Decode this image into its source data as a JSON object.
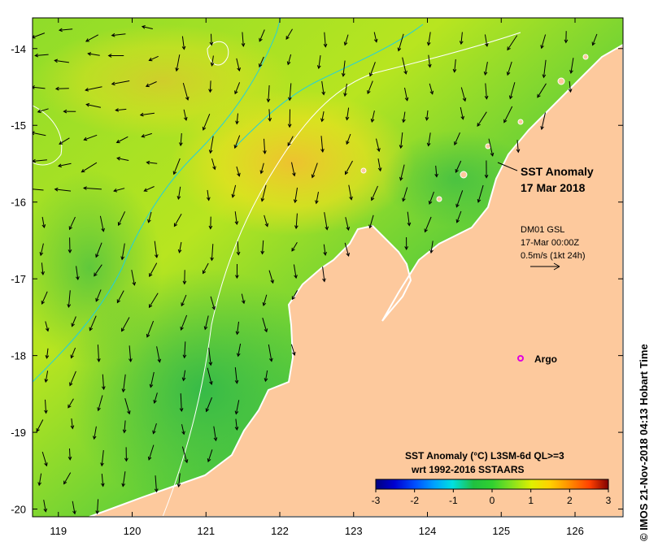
{
  "map": {
    "title_line1": "SST Anomaly",
    "title_line2": "17 Mar 2018",
    "current_info": {
      "line1": "DM01 GSL",
      "line2": "17-Mar 00:00Z",
      "line3": "0.5m/s (1kt 24h)"
    },
    "argo_label": "Argo",
    "argo_marker_color": "#e000e0",
    "land_color": "#fdc99d",
    "copyright": "© IMOS 21-Nov-2018 04:13 Hobart Time"
  },
  "axes": {
    "lon_labels": [
      "119",
      "120",
      "121",
      "122",
      "123",
      "124",
      "125",
      "126"
    ],
    "lat_labels": [
      "-14",
      "-15",
      "-16",
      "-17",
      "-18",
      "-19",
      "-20"
    ],
    "lon_range": [
      118.65,
      126.65
    ],
    "lat_range": [
      -20.1,
      -13.6
    ]
  },
  "colorbar": {
    "title_line1": "SST Anomaly (°C) L3SM-6d QL>=3",
    "title_line2": "wrt 1992-2016 SSTAARS",
    "ticks": [
      "-3",
      "-2",
      "-1",
      "0",
      "1",
      "2",
      "3"
    ],
    "range": [
      -3,
      3
    ],
    "colors": [
      "#000080",
      "#0000d0",
      "#0050ff",
      "#00a0ff",
      "#00e0e0",
      "#20c040",
      "#30d030",
      "#80e020",
      "#e0f000",
      "#ffd000",
      "#ff9000",
      "#ff4000",
      "#c00000",
      "#800000"
    ]
  }
}
